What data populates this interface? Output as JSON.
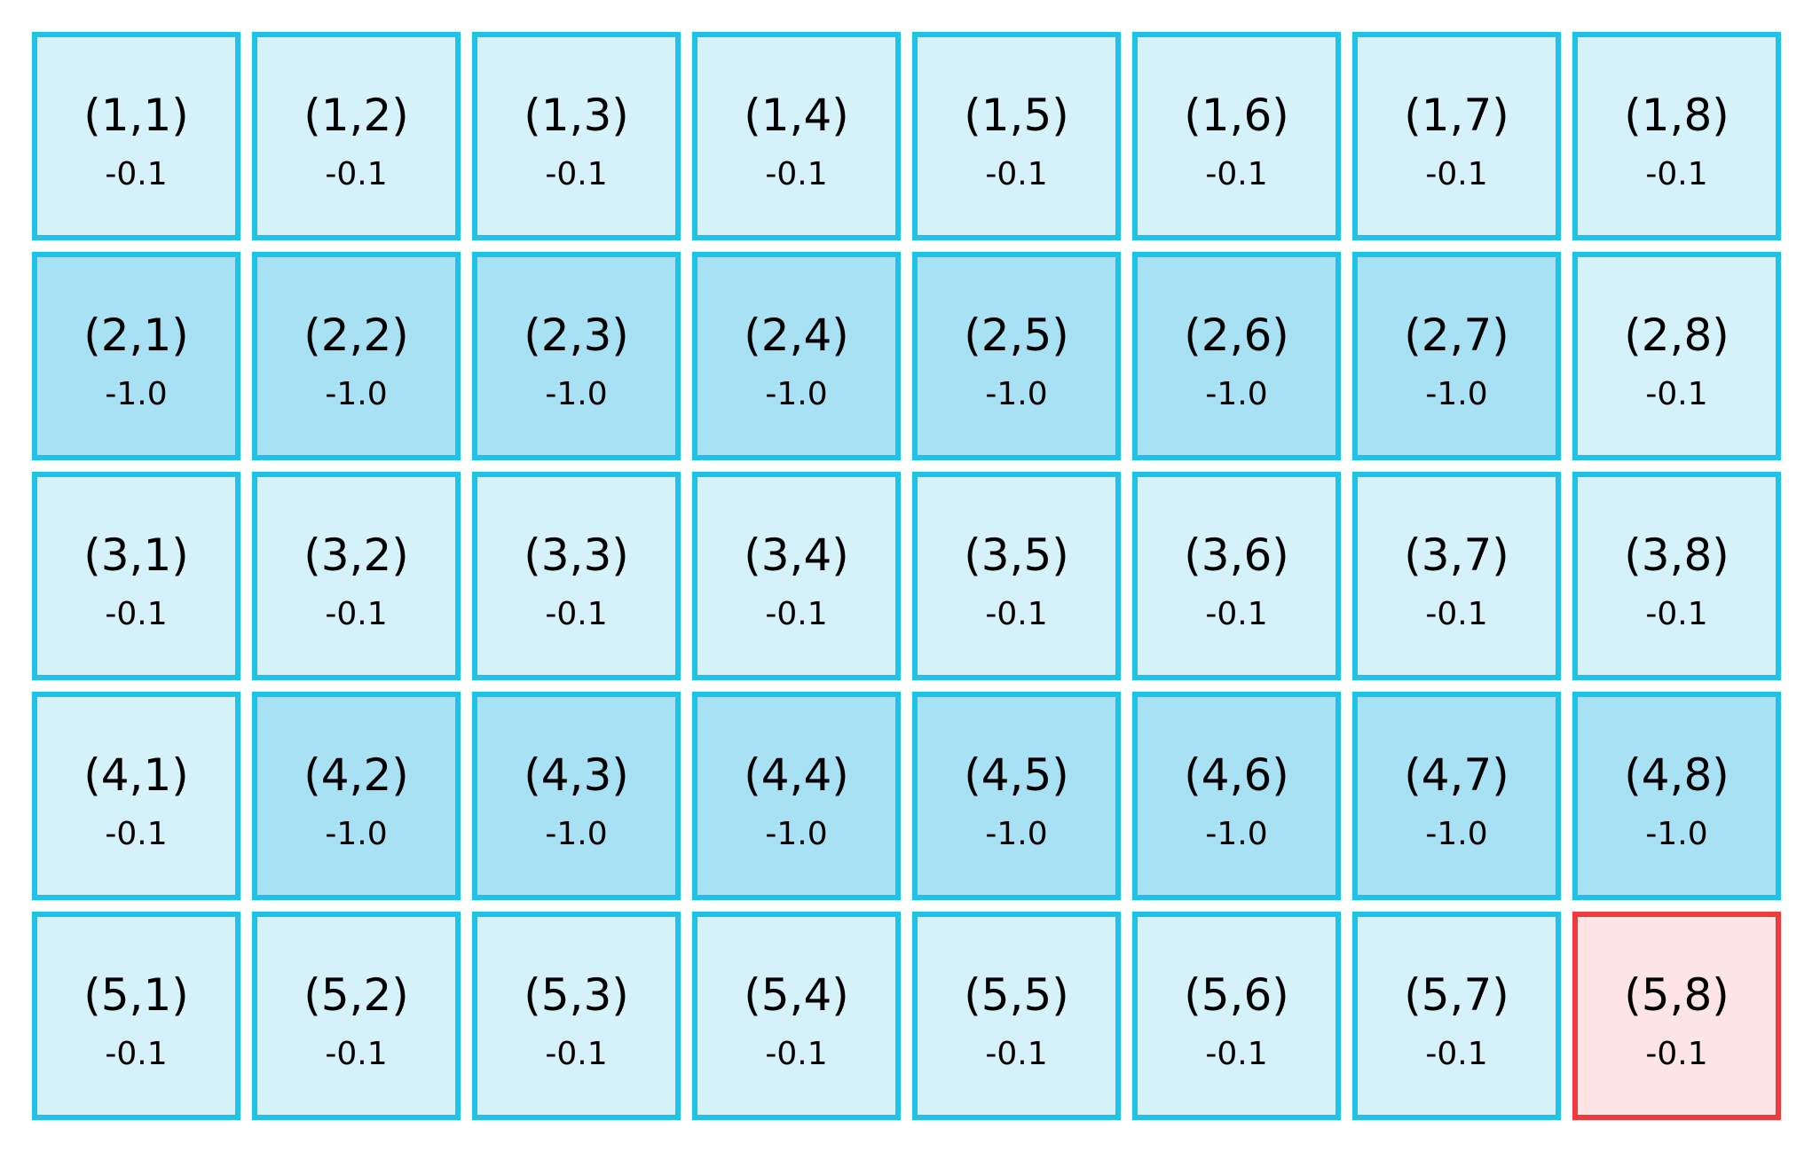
{
  "grid": {
    "rows": 5,
    "cols": 8,
    "colors": {
      "cell_fill": "#d5f2fb",
      "penalty_fill": "#a8e1f4",
      "cell_border": "#1fc3ea",
      "goal_fill": "#fde5e6",
      "goal_border": "#f23a3c"
    },
    "cells": [
      {
        "coord": "(1,1)",
        "reward": "-0.1",
        "type": "normal"
      },
      {
        "coord": "(1,2)",
        "reward": "-0.1",
        "type": "normal"
      },
      {
        "coord": "(1,3)",
        "reward": "-0.1",
        "type": "normal"
      },
      {
        "coord": "(1,4)",
        "reward": "-0.1",
        "type": "normal"
      },
      {
        "coord": "(1,5)",
        "reward": "-0.1",
        "type": "normal"
      },
      {
        "coord": "(1,6)",
        "reward": "-0.1",
        "type": "normal"
      },
      {
        "coord": "(1,7)",
        "reward": "-0.1",
        "type": "normal"
      },
      {
        "coord": "(1,8)",
        "reward": "-0.1",
        "type": "normal"
      },
      {
        "coord": "(2,1)",
        "reward": "-1.0",
        "type": "penalty"
      },
      {
        "coord": "(2,2)",
        "reward": "-1.0",
        "type": "penalty"
      },
      {
        "coord": "(2,3)",
        "reward": "-1.0",
        "type": "penalty"
      },
      {
        "coord": "(2,4)",
        "reward": "-1.0",
        "type": "penalty"
      },
      {
        "coord": "(2,5)",
        "reward": "-1.0",
        "type": "penalty"
      },
      {
        "coord": "(2,6)",
        "reward": "-1.0",
        "type": "penalty"
      },
      {
        "coord": "(2,7)",
        "reward": "-1.0",
        "type": "penalty"
      },
      {
        "coord": "(2,8)",
        "reward": "-0.1",
        "type": "normal"
      },
      {
        "coord": "(3,1)",
        "reward": "-0.1",
        "type": "normal"
      },
      {
        "coord": "(3,2)",
        "reward": "-0.1",
        "type": "normal"
      },
      {
        "coord": "(3,3)",
        "reward": "-0.1",
        "type": "normal"
      },
      {
        "coord": "(3,4)",
        "reward": "-0.1",
        "type": "normal"
      },
      {
        "coord": "(3,5)",
        "reward": "-0.1",
        "type": "normal"
      },
      {
        "coord": "(3,6)",
        "reward": "-0.1",
        "type": "normal"
      },
      {
        "coord": "(3,7)",
        "reward": "-0.1",
        "type": "normal"
      },
      {
        "coord": "(3,8)",
        "reward": "-0.1",
        "type": "normal"
      },
      {
        "coord": "(4,1)",
        "reward": "-0.1",
        "type": "normal"
      },
      {
        "coord": "(4,2)",
        "reward": "-1.0",
        "type": "penalty"
      },
      {
        "coord": "(4,3)",
        "reward": "-1.0",
        "type": "penalty"
      },
      {
        "coord": "(4,4)",
        "reward": "-1.0",
        "type": "penalty"
      },
      {
        "coord": "(4,5)",
        "reward": "-1.0",
        "type": "penalty"
      },
      {
        "coord": "(4,6)",
        "reward": "-1.0",
        "type": "penalty"
      },
      {
        "coord": "(4,7)",
        "reward": "-1.0",
        "type": "penalty"
      },
      {
        "coord": "(4,8)",
        "reward": "-1.0",
        "type": "penalty"
      },
      {
        "coord": "(5,1)",
        "reward": "-0.1",
        "type": "normal"
      },
      {
        "coord": "(5,2)",
        "reward": "-0.1",
        "type": "normal"
      },
      {
        "coord": "(5,3)",
        "reward": "-0.1",
        "type": "normal"
      },
      {
        "coord": "(5,4)",
        "reward": "-0.1",
        "type": "normal"
      },
      {
        "coord": "(5,5)",
        "reward": "-0.1",
        "type": "normal"
      },
      {
        "coord": "(5,6)",
        "reward": "-0.1",
        "type": "normal"
      },
      {
        "coord": "(5,7)",
        "reward": "-0.1",
        "type": "normal"
      },
      {
        "coord": "(5,8)",
        "reward": "-0.1",
        "type": "goal"
      }
    ]
  }
}
